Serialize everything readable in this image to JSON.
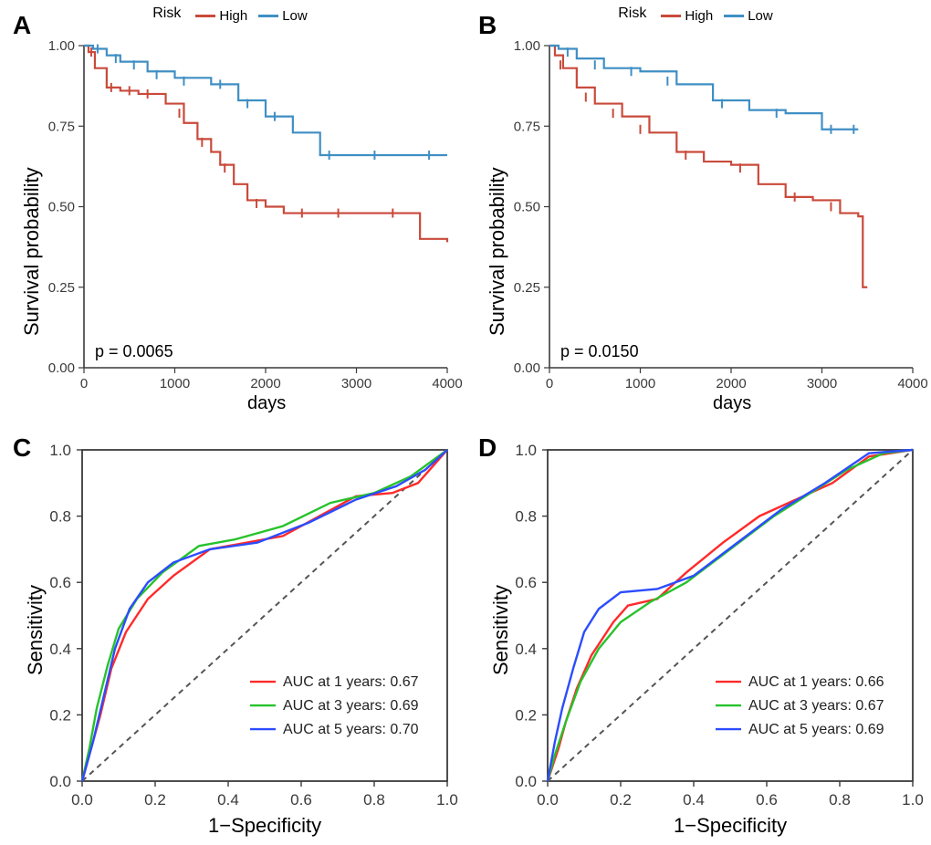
{
  "colors": {
    "high": "#c94a3b",
    "low": "#3f8fc4",
    "roc1": "#ff2a2a",
    "roc3": "#27c22c",
    "roc5": "#2c4cff",
    "axis": "#3a3a3a",
    "tick_text": "#3a3a3a",
    "bg": "#ffffff",
    "diag": "#555555"
  },
  "panel_label_fontsize": 28,
  "km": {
    "legend_title": "Risk",
    "legend_items": [
      {
        "label": "High",
        "color_key": "high"
      },
      {
        "label": "Low",
        "color_key": "low"
      }
    ],
    "y_label": "Survival probability",
    "x_label": "days",
    "ylim": [
      0.0,
      1.0
    ],
    "yticks": [
      "0.00",
      "0.25",
      "0.50",
      "0.75",
      "1.00"
    ],
    "line_width": 2.2,
    "A": {
      "panel_label": "A",
      "p_text": "p = 0.0065",
      "xlim": [
        0,
        4000
      ],
      "xticks": [
        "0",
        "1000",
        "2000",
        "3000",
        "4000"
      ],
      "high_points": [
        [
          0,
          1.0
        ],
        [
          50,
          0.98
        ],
        [
          120,
          0.93
        ],
        [
          250,
          0.87
        ],
        [
          400,
          0.86
        ],
        [
          600,
          0.85
        ],
        [
          900,
          0.82
        ],
        [
          1100,
          0.76
        ],
        [
          1250,
          0.71
        ],
        [
          1400,
          0.67
        ],
        [
          1500,
          0.63
        ],
        [
          1650,
          0.57
        ],
        [
          1800,
          0.52
        ],
        [
          2000,
          0.5
        ],
        [
          2200,
          0.48
        ],
        [
          2500,
          0.48
        ],
        [
          3000,
          0.48
        ],
        [
          3500,
          0.48
        ],
        [
          3700,
          0.4
        ],
        [
          4000,
          0.39
        ]
      ],
      "low_points": [
        [
          0,
          1.0
        ],
        [
          100,
          0.99
        ],
        [
          250,
          0.97
        ],
        [
          400,
          0.95
        ],
        [
          700,
          0.92
        ],
        [
          1000,
          0.9
        ],
        [
          1400,
          0.88
        ],
        [
          1700,
          0.83
        ],
        [
          2000,
          0.78
        ],
        [
          2300,
          0.73
        ],
        [
          2600,
          0.66
        ],
        [
          3000,
          0.66
        ],
        [
          3400,
          0.66
        ],
        [
          4000,
          0.66
        ]
      ],
      "high_censor": [
        [
          80,
          0.98
        ],
        [
          300,
          0.87
        ],
        [
          500,
          0.86
        ],
        [
          700,
          0.85
        ],
        [
          1050,
          0.79
        ],
        [
          1300,
          0.7
        ],
        [
          1550,
          0.62
        ],
        [
          1900,
          0.51
        ],
        [
          2400,
          0.48
        ],
        [
          2800,
          0.48
        ],
        [
          3400,
          0.48
        ]
      ],
      "low_censor": [
        [
          150,
          0.99
        ],
        [
          350,
          0.96
        ],
        [
          550,
          0.94
        ],
        [
          800,
          0.91
        ],
        [
          1100,
          0.89
        ],
        [
          1500,
          0.88
        ],
        [
          1800,
          0.82
        ],
        [
          2100,
          0.78
        ],
        [
          2700,
          0.66
        ],
        [
          3200,
          0.66
        ],
        [
          3800,
          0.66
        ]
      ]
    },
    "B": {
      "panel_label": "B",
      "p_text": "p = 0.0150",
      "xlim": [
        0,
        4000
      ],
      "xticks": [
        "0",
        "1000",
        "2000",
        "3000",
        "4000"
      ],
      "high_points": [
        [
          0,
          1.0
        ],
        [
          60,
          0.97
        ],
        [
          150,
          0.93
        ],
        [
          300,
          0.87
        ],
        [
          500,
          0.82
        ],
        [
          800,
          0.78
        ],
        [
          1100,
          0.73
        ],
        [
          1400,
          0.67
        ],
        [
          1700,
          0.64
        ],
        [
          2000,
          0.63
        ],
        [
          2300,
          0.57
        ],
        [
          2600,
          0.53
        ],
        [
          2900,
          0.52
        ],
        [
          3200,
          0.48
        ],
        [
          3400,
          0.47
        ],
        [
          3450,
          0.25
        ],
        [
          3500,
          0.25
        ]
      ],
      "low_points": [
        [
          0,
          1.0
        ],
        [
          100,
          0.99
        ],
        [
          300,
          0.96
        ],
        [
          600,
          0.93
        ],
        [
          1000,
          0.92
        ],
        [
          1400,
          0.88
        ],
        [
          1800,
          0.83
        ],
        [
          2200,
          0.8
        ],
        [
          2600,
          0.79
        ],
        [
          3000,
          0.74
        ],
        [
          3400,
          0.74
        ]
      ],
      "high_censor": [
        [
          120,
          0.94
        ],
        [
          400,
          0.84
        ],
        [
          700,
          0.79
        ],
        [
          1000,
          0.74
        ],
        [
          1500,
          0.66
        ],
        [
          2100,
          0.62
        ],
        [
          2700,
          0.53
        ],
        [
          3100,
          0.5
        ]
      ],
      "low_censor": [
        [
          200,
          0.98
        ],
        [
          500,
          0.94
        ],
        [
          900,
          0.92
        ],
        [
          1300,
          0.89
        ],
        [
          1900,
          0.82
        ],
        [
          2500,
          0.79
        ],
        [
          3100,
          0.74
        ],
        [
          3350,
          0.74
        ]
      ]
    }
  },
  "roc": {
    "y_label": "Sensitivity",
    "x_label": "1−Specificity",
    "ylim": [
      0.0,
      1.0
    ],
    "xlim": [
      0.0,
      1.0
    ],
    "ticks": [
      "0.0",
      "0.2",
      "0.4",
      "0.6",
      "0.8",
      "1.0"
    ],
    "line_width": 2.4,
    "dash": "6,5",
    "C": {
      "panel_label": "C",
      "legend": [
        {
          "text_prefix": "AUC at 1 years: ",
          "auc": "0.67",
          "color_key": "roc1"
        },
        {
          "text_prefix": "AUC at 3 years: ",
          "auc": "0.69",
          "color_key": "roc3"
        },
        {
          "text_prefix": "AUC at 5 years: ",
          "auc": "0.70",
          "color_key": "roc5"
        }
      ],
      "curves": {
        "roc1": [
          [
            0,
            0
          ],
          [
            0.02,
            0.08
          ],
          [
            0.05,
            0.2
          ],
          [
            0.08,
            0.34
          ],
          [
            0.12,
            0.45
          ],
          [
            0.18,
            0.55
          ],
          [
            0.25,
            0.62
          ],
          [
            0.35,
            0.7
          ],
          [
            0.45,
            0.72
          ],
          [
            0.55,
            0.74
          ],
          [
            0.65,
            0.8
          ],
          [
            0.75,
            0.86
          ],
          [
            0.85,
            0.87
          ],
          [
            0.92,
            0.9
          ],
          [
            1.0,
            1.0
          ]
        ],
        "roc3": [
          [
            0,
            0
          ],
          [
            0.02,
            0.1
          ],
          [
            0.04,
            0.22
          ],
          [
            0.07,
            0.35
          ],
          [
            0.1,
            0.46
          ],
          [
            0.15,
            0.55
          ],
          [
            0.22,
            0.63
          ],
          [
            0.32,
            0.71
          ],
          [
            0.42,
            0.73
          ],
          [
            0.55,
            0.77
          ],
          [
            0.68,
            0.84
          ],
          [
            0.8,
            0.87
          ],
          [
            0.9,
            0.92
          ],
          [
            1.0,
            1.0
          ]
        ],
        "roc5": [
          [
            0,
            0
          ],
          [
            0.03,
            0.12
          ],
          [
            0.06,
            0.26
          ],
          [
            0.09,
            0.4
          ],
          [
            0.13,
            0.52
          ],
          [
            0.18,
            0.6
          ],
          [
            0.25,
            0.66
          ],
          [
            0.35,
            0.7
          ],
          [
            0.48,
            0.72
          ],
          [
            0.62,
            0.78
          ],
          [
            0.75,
            0.85
          ],
          [
            0.86,
            0.89
          ],
          [
            0.94,
            0.94
          ],
          [
            1.0,
            1.0
          ]
        ]
      }
    },
    "D": {
      "panel_label": "D",
      "legend": [
        {
          "text_prefix": "AUC at 1 years: ",
          "auc": "0.66",
          "color_key": "roc1"
        },
        {
          "text_prefix": "AUC at 3 years: ",
          "auc": "0.67",
          "color_key": "roc3"
        },
        {
          "text_prefix": "AUC at 5 years: ",
          "auc": "0.69",
          "color_key": "roc5"
        }
      ],
      "curves": {
        "roc1": [
          [
            0,
            0
          ],
          [
            0.03,
            0.1
          ],
          [
            0.05,
            0.18
          ],
          [
            0.08,
            0.28
          ],
          [
            0.12,
            0.38
          ],
          [
            0.18,
            0.48
          ],
          [
            0.22,
            0.53
          ],
          [
            0.3,
            0.55
          ],
          [
            0.38,
            0.63
          ],
          [
            0.48,
            0.72
          ],
          [
            0.58,
            0.8
          ],
          [
            0.68,
            0.85
          ],
          [
            0.78,
            0.9
          ],
          [
            0.88,
            0.98
          ],
          [
            1.0,
            1.0
          ]
        ],
        "roc3": [
          [
            0,
            0
          ],
          [
            0.02,
            0.08
          ],
          [
            0.05,
            0.18
          ],
          [
            0.09,
            0.3
          ],
          [
            0.14,
            0.4
          ],
          [
            0.2,
            0.48
          ],
          [
            0.28,
            0.54
          ],
          [
            0.38,
            0.6
          ],
          [
            0.5,
            0.7
          ],
          [
            0.62,
            0.8
          ],
          [
            0.72,
            0.87
          ],
          [
            0.82,
            0.94
          ],
          [
            0.92,
            0.99
          ],
          [
            1.0,
            1.0
          ]
        ],
        "roc5": [
          [
            0,
            0
          ],
          [
            0.02,
            0.12
          ],
          [
            0.04,
            0.22
          ],
          [
            0.07,
            0.34
          ],
          [
            0.1,
            0.45
          ],
          [
            0.14,
            0.52
          ],
          [
            0.2,
            0.57
          ],
          [
            0.3,
            0.58
          ],
          [
            0.4,
            0.62
          ],
          [
            0.52,
            0.72
          ],
          [
            0.64,
            0.82
          ],
          [
            0.76,
            0.9
          ],
          [
            0.88,
            0.99
          ],
          [
            1.0,
            1.0
          ]
        ]
      }
    }
  }
}
